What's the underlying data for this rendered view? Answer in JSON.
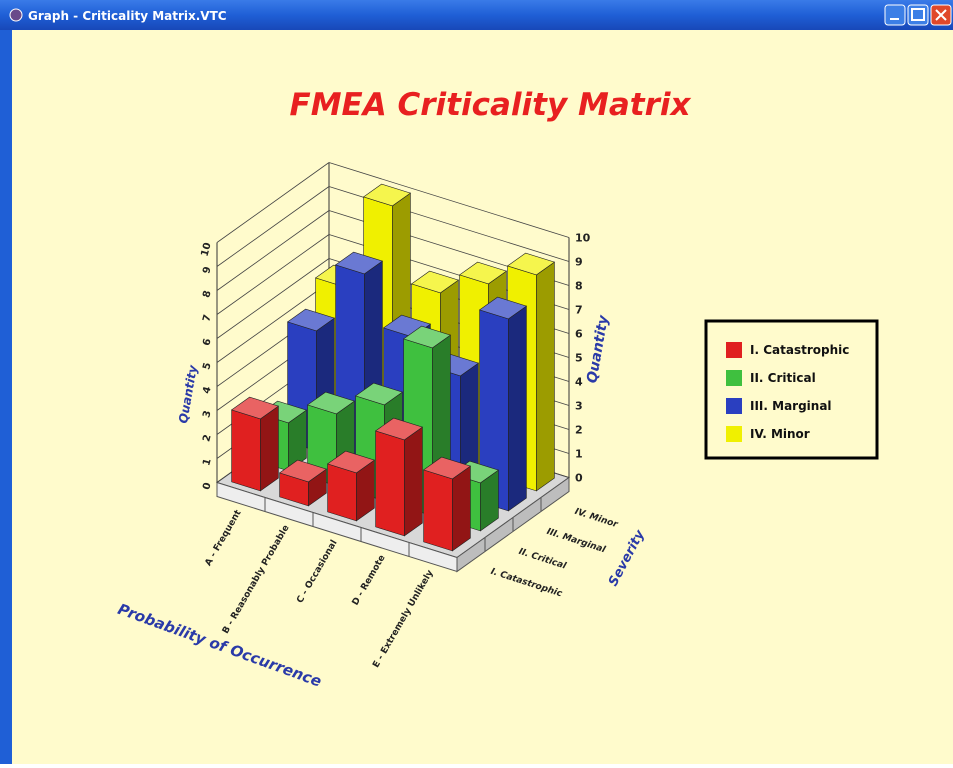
{
  "window_title": "Graph - Criticality Matrix.VTC",
  "chart_data": {
    "type": "bar3d",
    "title": "FMEA Criticality Matrix",
    "categories": [
      "A - Frequent",
      "B - Reasonably Probable",
      "C - Occasional",
      "D - Remote",
      "E - Extremely Unlikely"
    ],
    "series": [
      {
        "name": "I. Catastrophic",
        "color": "#e02020",
        "values": [
          3,
          1,
          2,
          4,
          3
        ]
      },
      {
        "name": "II. Critical",
        "color": "#3fc03f",
        "values": [
          2,
          3,
          4,
          7,
          2
        ]
      },
      {
        "name": "III. Marginal",
        "color": "#2a3fc0",
        "values": [
          5,
          8,
          6,
          5,
          8
        ]
      },
      {
        "name": "IV. Minor",
        "color": "#f0f000",
        "values": [
          6,
          10,
          7,
          8,
          9
        ]
      }
    ],
    "xlabel": "Probability of Occurrence",
    "zlabel": "Severity",
    "ylabel": "Quantity",
    "y2label": "Quantity",
    "ylim": [
      0,
      10
    ],
    "yticks": [
      0,
      1,
      2,
      3,
      4,
      5,
      6,
      7,
      8,
      9,
      10
    ],
    "y2lim": [
      0,
      10
    ],
    "y2ticks": [
      0,
      1,
      2,
      3,
      4,
      5,
      6,
      7,
      8,
      9,
      10
    ],
    "grid": true,
    "legend": "right"
  }
}
